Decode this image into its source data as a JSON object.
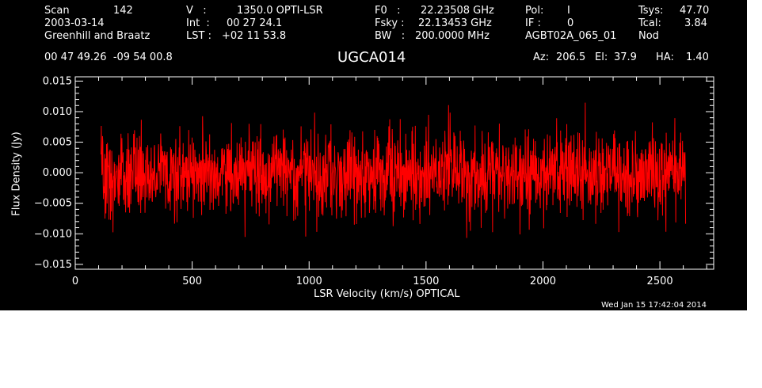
{
  "header": {
    "scan_label": "Scan",
    "scan_value": "142",
    "date": "2003-03-14",
    "observers": "Greenhill and Braatz",
    "v_label": "V   :",
    "v_value": "1350.0 OPTI-LSR",
    "int_label": "Int  :",
    "int_value": "00 27 24.1",
    "lst_label": "LST :",
    "lst_value": "+02 11 53.8",
    "f0_label": "F0   :",
    "f0_value": "22.23508 GHz",
    "fsky_label": "Fsky :",
    "fsky_value": "22.13453 GHz",
    "bw_label": "BW   :",
    "bw_value": "200.0000 MHz",
    "pol_label": "Pol:",
    "pol_value": "I",
    "if_label": "IF :",
    "if_value": "0",
    "project": "AGBT02A_065_01",
    "tsys_label": "Tsys:",
    "tsys_value": "47.70",
    "tcal_label": "Tcal:",
    "tcal_value": "3.84",
    "proc": "Nod",
    "coords": "00 47 49.26  -09 54 00.8",
    "source": "UGCA014",
    "az_label": "Az:",
    "az_value": "206.5",
    "el_label": "El:",
    "el_value": "37.9",
    "ha_label": "HA:",
    "ha_value": "1.40"
  },
  "timestamp": "Wed Jan 15 17:42:04 2014",
  "colors": {
    "background": "#000000",
    "axes": "#ffffff",
    "trace": "#ff0000",
    "page": "#ffffff"
  },
  "chart_data": {
    "type": "line",
    "title": "UGCA014",
    "xlabel": "LSR Velocity (km/s) OPTICAL",
    "ylabel": "Flux Density (Jy)",
    "xlim": [
      0,
      2730
    ],
    "ylim": [
      -0.0158,
      0.0157
    ],
    "xticks": [
      0,
      500,
      1000,
      1500,
      2000,
      2500
    ],
    "xtick_labels": [
      "0",
      "500",
      "1000",
      "1500",
      "2000",
      "2500"
    ],
    "yticks": [
      -0.015,
      -0.01,
      -0.005,
      0.0,
      0.005,
      0.01,
      0.015
    ],
    "ytick_labels": [
      "−0.015",
      "−0.010",
      "−0.005",
      "0.000",
      "0.005",
      "0.010",
      "0.015"
    ],
    "series": [
      {
        "color": "#ff0000",
        "x_range": [
          110,
          2610
        ],
        "baseline": 0.0,
        "noise_rms": 0.0035,
        "points": 1900,
        "description": "noise-dominated spectrum centered on zero"
      }
    ],
    "grid": false
  }
}
